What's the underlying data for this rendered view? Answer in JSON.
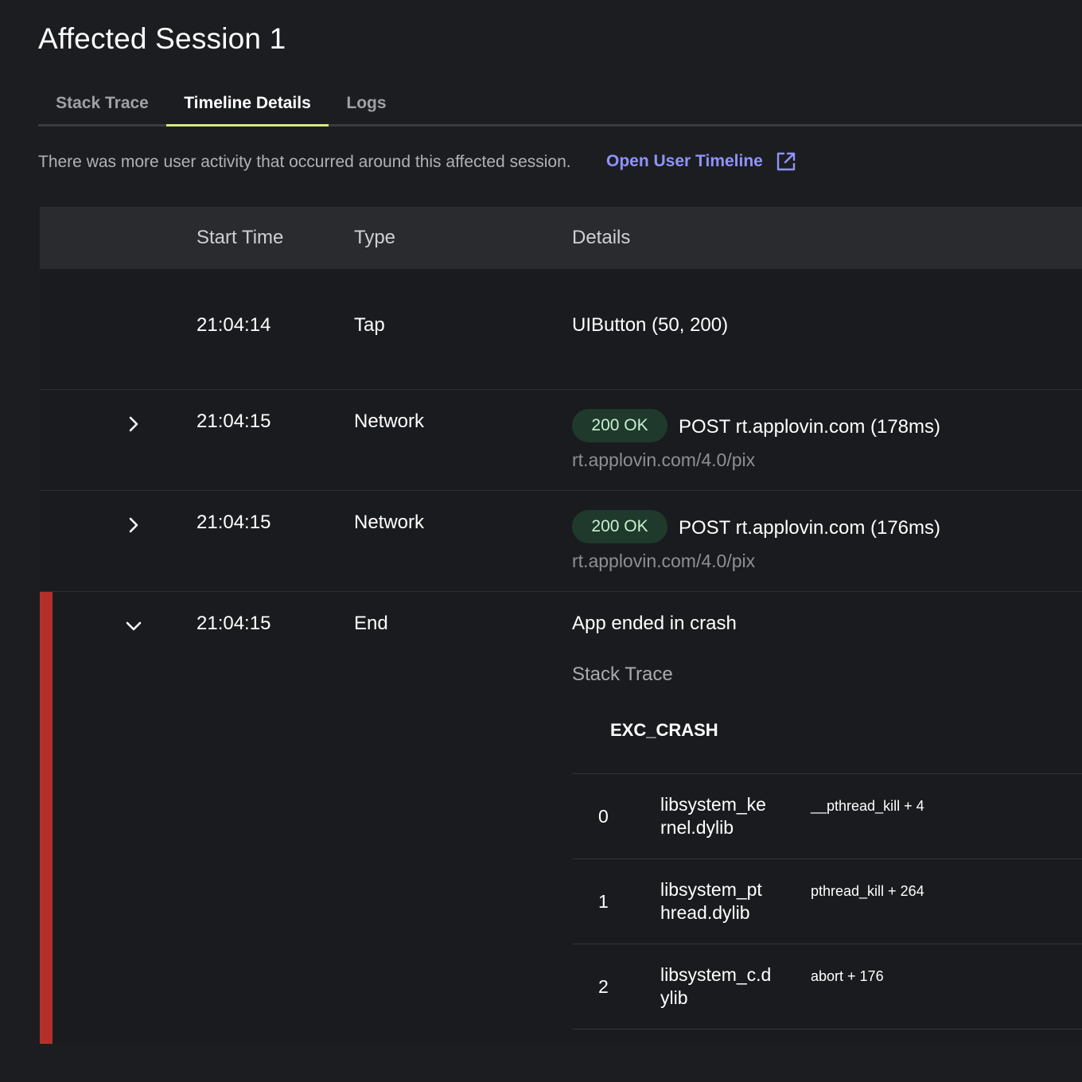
{
  "page": {
    "title": "Affected Session 1"
  },
  "tabs": [
    {
      "label": "Stack Trace",
      "active": false
    },
    {
      "label": "Timeline Details",
      "active": true
    },
    {
      "label": "Logs",
      "active": false
    }
  ],
  "notice": {
    "text": "There was more user activity that occurred around this affected session.",
    "link_label": "Open User Timeline",
    "link_icon": "external-link-icon"
  },
  "table": {
    "headers": {
      "start_time": "Start Time",
      "type": "Type",
      "details": "Details"
    },
    "rows": [
      {
        "time": "21:04:14",
        "type": "Tap",
        "details": "UIButton (50, 200)"
      },
      {
        "time": "21:04:15",
        "type": "Network",
        "status": "200 OK",
        "details": "POST rt.applovin.com (178ms)",
        "url": "rt.applovin.com/4.0/pix",
        "expander": "chevron-right-icon"
      },
      {
        "time": "21:04:15",
        "type": "Network",
        "status": "200 OK",
        "details": "POST rt.applovin.com (176ms)",
        "url": "rt.applovin.com/4.0/pix",
        "expander": "chevron-right-icon"
      },
      {
        "time": "21:04:15",
        "type": "End",
        "details": "App ended in crash",
        "expander": "chevron-down-icon",
        "expanded": true
      }
    ]
  },
  "crash": {
    "section_label": "Stack Trace",
    "exception": "EXC_CRASH",
    "frames": [
      {
        "index": "0",
        "library": "libsystem_kernel.dylib",
        "function": "__pthread_kill + 4"
      },
      {
        "index": "1",
        "library": "libsystem_pthread.dylib",
        "function": "pthread_kill + 264"
      },
      {
        "index": "2",
        "library": "libsystem_c.dylib",
        "function": "abort + 176"
      }
    ]
  },
  "colors": {
    "background": "#1c1d20",
    "tab_indicator": "#d6ea7b",
    "link": "#8f93ff",
    "status_badge_bg": "#1f3a2c",
    "crash_marker": "#b3302b"
  }
}
